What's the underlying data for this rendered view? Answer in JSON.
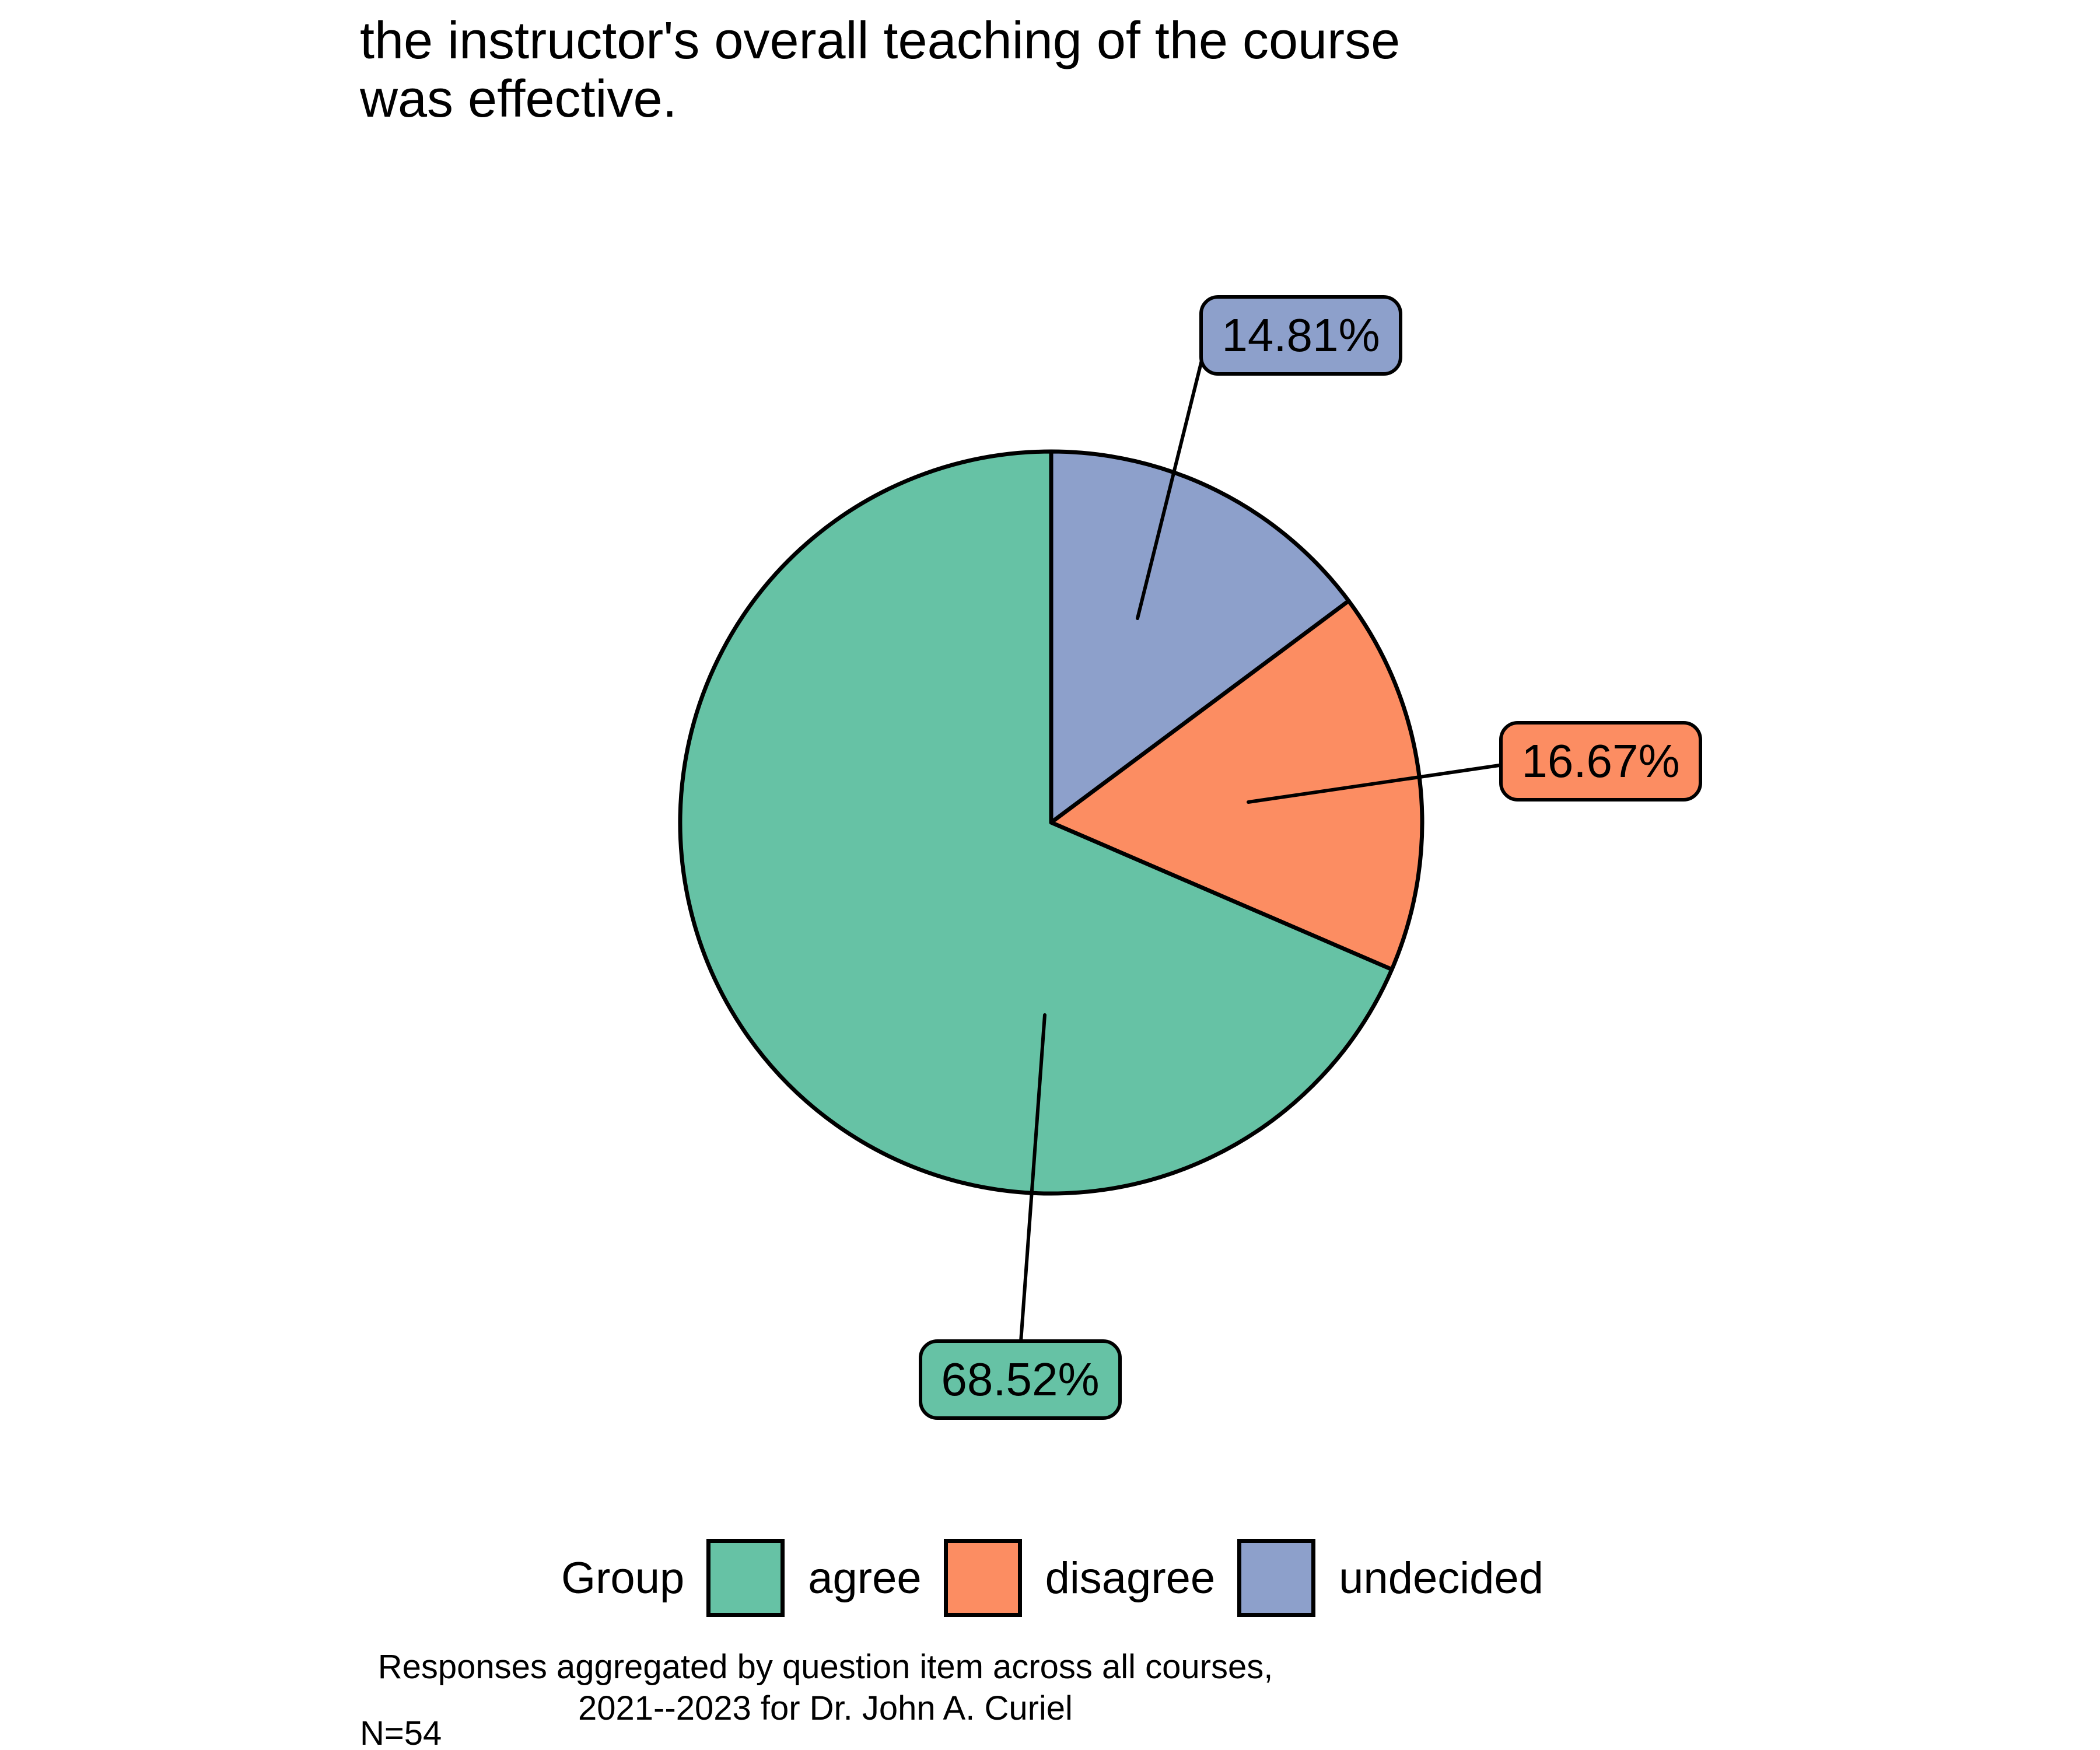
{
  "title": {
    "line1": "the instructor's overall teaching of the course",
    "line2": "was effective."
  },
  "chart_data": {
    "type": "pie",
    "title": "the instructor's overall teaching of the course was effective.",
    "categories": [
      "agree",
      "disagree",
      "undecided"
    ],
    "values": [
      68.52,
      16.67,
      14.81
    ],
    "labels": [
      "68.52%",
      "16.67%",
      "14.81%"
    ],
    "colors": [
      "#66C2A5",
      "#FC8D62",
      "#8DA0CB"
    ],
    "start_angle": "12 o'clock",
    "direction": "counterclockwise",
    "legend_title": "Group",
    "legend_position": "bottom",
    "sample_size_label": "N=54"
  },
  "legend": {
    "title": "Group",
    "items": [
      {
        "label": "agree",
        "color": "#66C2A5"
      },
      {
        "label": "disagree",
        "color": "#FC8D62"
      },
      {
        "label": "undecided",
        "color": "#8DA0CB"
      }
    ]
  },
  "caption": {
    "line1": "Responses aggregated by question item across all courses,",
    "line2": "2021--2023 for Dr. John A. Curiel"
  },
  "footnote": "N=54"
}
